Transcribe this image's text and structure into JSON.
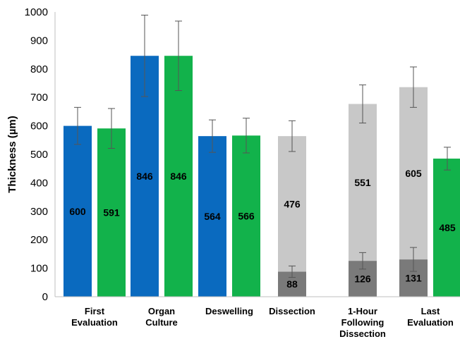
{
  "chart_data": {
    "type": "bar",
    "stacked_segments": true,
    "title": "",
    "xlabel": "",
    "ylabel": "Thickness (µm)",
    "ylim": [
      0,
      1000
    ],
    "yticks": [
      0,
      100,
      200,
      300,
      400,
      500,
      600,
      700,
      800,
      900,
      1000
    ],
    "grid": false,
    "legend": "none",
    "colors": {
      "blue": "#0A6ABF",
      "green": "#12B24B",
      "light_gray": "#C8C8C8",
      "dark_gray": "#7A7A7A",
      "error_bar": "#555555"
    },
    "categories": [
      {
        "label_lines": [
          "First",
          "Evaluation"
        ],
        "bars": [
          {
            "segments": [
              {
                "value": 600,
                "label": "600",
                "color": "blue"
              }
            ],
            "error": 65
          },
          {
            "segments": [
              {
                "value": 591,
                "label": "591",
                "color": "green"
              }
            ],
            "error": 70
          }
        ]
      },
      {
        "label_lines": [
          "Organ",
          "Culture"
        ],
        "bars": [
          {
            "segments": [
              {
                "value": 846,
                "label": "846",
                "color": "blue"
              }
            ],
            "error": 143
          },
          {
            "segments": [
              {
                "value": 846,
                "label": "846",
                "color": "green"
              }
            ],
            "error": 122
          }
        ]
      },
      {
        "label_lines": [
          "Deswelling"
        ],
        "bars": [
          {
            "segments": [
              {
                "value": 564,
                "label": "564",
                "color": "blue"
              }
            ],
            "error": 57
          },
          {
            "segments": [
              {
                "value": 566,
                "label": "566",
                "color": "green"
              }
            ],
            "error": 61
          }
        ]
      },
      {
        "label_lines": [
          "Dissection"
        ],
        "bars": [
          {
            "segments": [
              {
                "value": 88,
                "label": "88",
                "color": "dark_gray",
                "error": 20
              },
              {
                "value": 476,
                "label": "476",
                "color": "light_gray"
              }
            ],
            "error": 54
          }
        ]
      },
      {
        "label_lines": [
          "1-Hour",
          "Following",
          "Dissection"
        ],
        "bars": [
          {
            "segments": [
              {
                "value": 126,
                "label": "126",
                "color": "dark_gray",
                "error": 29
              },
              {
                "value": 551,
                "label": "551",
                "color": "light_gray"
              }
            ],
            "error": 67
          }
        ]
      },
      {
        "label_lines": [
          "Last",
          "Evaluation"
        ],
        "bars": [
          {
            "segments": [
              {
                "value": 131,
                "label": "131",
                "color": "dark_gray",
                "error": 42
              },
              {
                "value": 605,
                "label": "605",
                "color": "light_gray"
              }
            ],
            "error": 71
          },
          {
            "segments": [
              {
                "value": 485,
                "label": "485",
                "color": "green"
              }
            ],
            "error": 40
          }
        ]
      }
    ]
  }
}
